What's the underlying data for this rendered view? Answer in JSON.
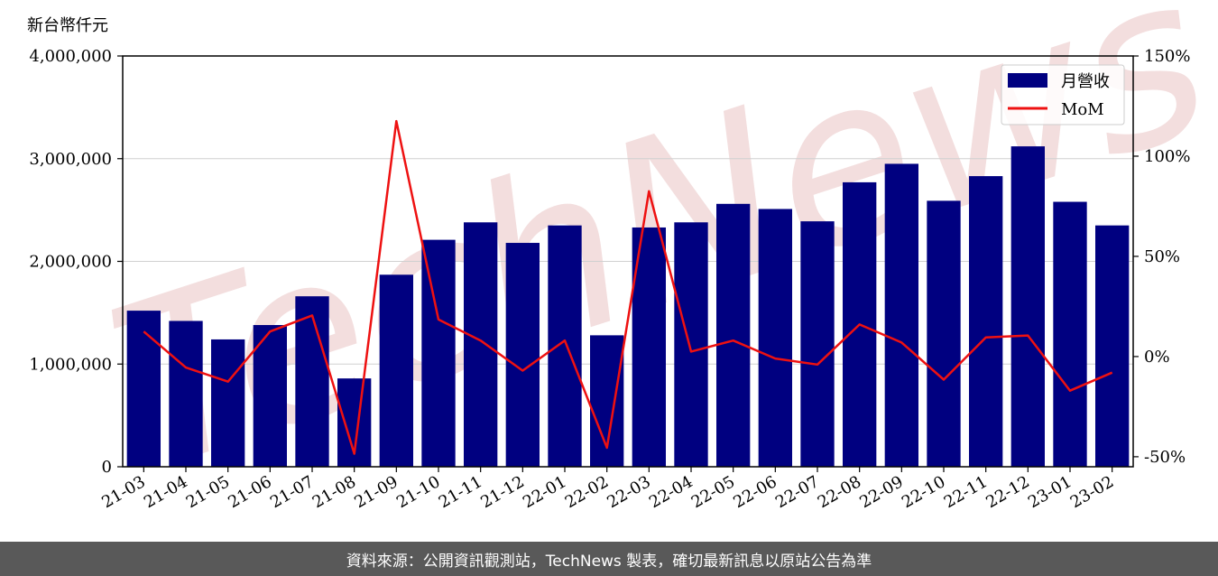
{
  "chart_data": {
    "type": "bar",
    "y_unit_label": "新台幣仟元",
    "categories": [
      "21-03",
      "21-04",
      "21-05",
      "21-06",
      "21-07",
      "21-08",
      "21-09",
      "21-10",
      "21-11",
      "21-12",
      "22-01",
      "22-02",
      "22-03",
      "22-04",
      "22-05",
      "22-06",
      "22-07",
      "22-08",
      "22-09",
      "22-10",
      "22-11",
      "22-12",
      "23-01",
      "23-02"
    ],
    "series": [
      {
        "name": "月營收",
        "kind": "bar",
        "axis": "left",
        "color": "#000080",
        "values": [
          1520000,
          1420000,
          1240000,
          1380000,
          1660000,
          860000,
          1870000,
          2210000,
          2380000,
          2180000,
          2350000,
          1280000,
          2330000,
          2380000,
          2560000,
          2510000,
          2390000,
          2770000,
          2950000,
          2590000,
          2830000,
          3120000,
          2580000,
          2350000
        ]
      },
      {
        "name": "MoM",
        "kind": "line",
        "axis": "right",
        "color": "#ee1111",
        "values": [
          12.5,
          -5.5,
          -12.5,
          12.5,
          20.5,
          -48.5,
          117.5,
          18.5,
          8,
          -7,
          8,
          -45.5,
          82.5,
          2.5,
          8,
          -1,
          -4,
          16,
          7,
          -11.5,
          9.5,
          10.5,
          -17,
          -8
        ]
      }
    ],
    "y_left": {
      "ylim": [
        0,
        4000000
      ],
      "ticks": [
        0,
        1000000,
        2000000,
        3000000,
        4000000
      ],
      "tick_labels": [
        "0",
        "1,000,000",
        "2,000,000",
        "3,000,000",
        "4,000,000"
      ]
    },
    "y_right": {
      "ylim": [
        -55,
        150
      ],
      "ticks": [
        -50,
        0,
        50,
        100,
        150
      ],
      "tick_labels": [
        "-50%",
        "0%",
        "50%",
        "100%",
        "150%"
      ]
    },
    "grid": "horizontal",
    "legend_position": "top-right",
    "watermark": "TechNews"
  },
  "footer": {
    "text": "資料來源：公開資訊觀測站，TechNews 製表，確切最新訊息以原站公告為準"
  }
}
